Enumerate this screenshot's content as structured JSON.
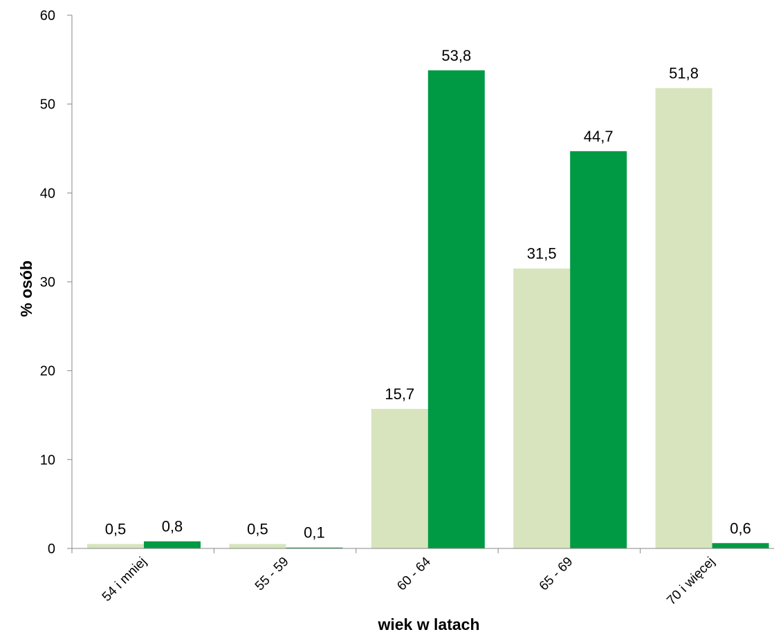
{
  "chart_data": {
    "type": "bar",
    "categories": [
      "54 i mniej",
      "55 - 59",
      "60 - 64",
      "65 - 69",
      "70 i więcej"
    ],
    "series": [
      {
        "values": [
          0.5,
          0.5,
          15.7,
          31.5,
          51.8
        ],
        "color": "#d7e4bd",
        "labels": [
          "0,5",
          "0,5",
          "15,7",
          "31,5",
          "51,8"
        ]
      },
      {
        "values": [
          0.8,
          0.1,
          53.8,
          44.7,
          0.6
        ],
        "color": "#009a44",
        "labels": [
          "0,8",
          "0,1",
          "53,8",
          "44,7",
          "0,6"
        ]
      }
    ],
    "xlabel": "wiek w latach",
    "ylabel": "% osób",
    "ylim": [
      0,
      60
    ],
    "yticks": [
      0,
      10,
      20,
      30,
      40,
      50,
      60
    ],
    "grid": false,
    "legend": "none"
  }
}
